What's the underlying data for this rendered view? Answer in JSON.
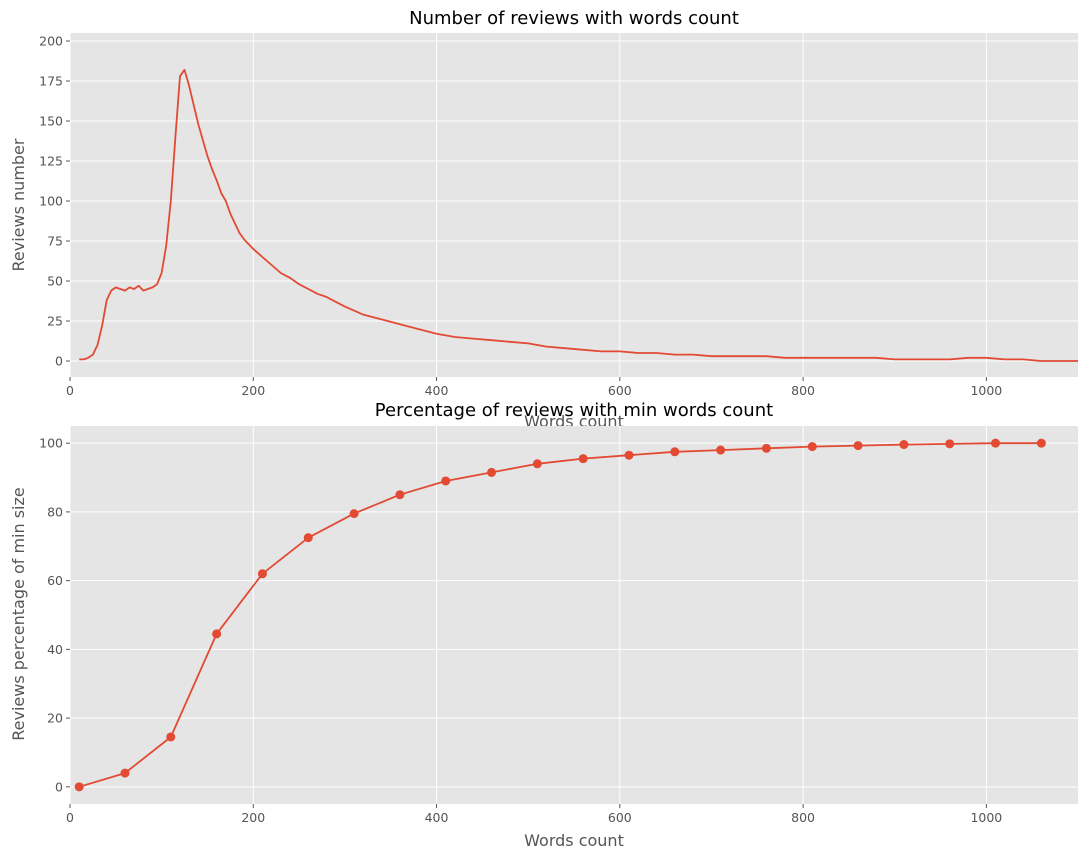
{
  "chart_data": [
    {
      "type": "line",
      "title": "Number of reviews with words count",
      "xlabel": "Words count",
      "ylabel": "Reviews number",
      "xlim": [
        0,
        1100
      ],
      "ylim": [
        -10,
        205
      ],
      "xticks": [
        0,
        200,
        400,
        600,
        800,
        1000
      ],
      "yticks": [
        0,
        25,
        50,
        75,
        100,
        125,
        150,
        175,
        200
      ],
      "grid": true,
      "color": "#e24a33",
      "series": [
        {
          "x": [
            10,
            15,
            20,
            25,
            30,
            35,
            40,
            45,
            50,
            55,
            60,
            65,
            70,
            75,
            80,
            85,
            90,
            95,
            100,
            105,
            110,
            115,
            120,
            125,
            130,
            135,
            140,
            145,
            150,
            155,
            160,
            165,
            170,
            175,
            180,
            185,
            190,
            195,
            200,
            210,
            220,
            230,
            240,
            250,
            260,
            270,
            280,
            290,
            300,
            320,
            340,
            360,
            380,
            400,
            420,
            440,
            460,
            480,
            500,
            520,
            540,
            560,
            580,
            600,
            620,
            640,
            660,
            680,
            700,
            720,
            740,
            760,
            780,
            800,
            820,
            840,
            860,
            880,
            900,
            920,
            940,
            960,
            980,
            1000,
            1020,
            1040,
            1060,
            1080,
            1100
          ],
          "y": [
            1,
            1,
            2,
            4,
            10,
            22,
            38,
            44,
            46,
            45,
            44,
            46,
            45,
            47,
            44,
            45,
            46,
            48,
            55,
            72,
            100,
            140,
            178,
            182,
            172,
            160,
            148,
            138,
            128,
            120,
            113,
            105,
            100,
            92,
            86,
            80,
            76,
            73,
            70,
            65,
            60,
            55,
            52,
            48,
            45,
            42,
            40,
            37,
            34,
            29,
            26,
            23,
            20,
            17,
            15,
            14,
            13,
            12,
            11,
            9,
            8,
            7,
            6,
            6,
            5,
            5,
            4,
            4,
            3,
            3,
            3,
            3,
            2,
            2,
            2,
            2,
            2,
            2,
            1,
            1,
            1,
            1,
            2,
            2,
            1,
            1,
            0,
            0,
            0
          ]
        }
      ]
    },
    {
      "type": "line",
      "title": "Percentage of reviews with min words count",
      "xlabel": "Words count",
      "ylabel": "Reviews percentage of min size",
      "xlim": [
        0,
        1100
      ],
      "ylim": [
        -5,
        105
      ],
      "xticks": [
        0,
        200,
        400,
        600,
        800,
        1000
      ],
      "yticks": [
        0,
        20,
        40,
        60,
        80,
        100
      ],
      "grid": true,
      "color": "#e24a33",
      "markers": true,
      "series": [
        {
          "x": [
            10,
            60,
            110,
            160,
            210,
            260,
            310,
            360,
            410,
            460,
            510,
            560,
            610,
            660,
            710,
            760,
            810,
            860,
            910,
            960,
            1010,
            1060
          ],
          "y": [
            0,
            4,
            14.5,
            44.5,
            62,
            72.5,
            79.5,
            85,
            89,
            91.5,
            94,
            95.5,
            96.5,
            97.5,
            98,
            98.5,
            99,
            99.3,
            99.6,
            99.8,
            100,
            100
          ]
        }
      ]
    }
  ]
}
